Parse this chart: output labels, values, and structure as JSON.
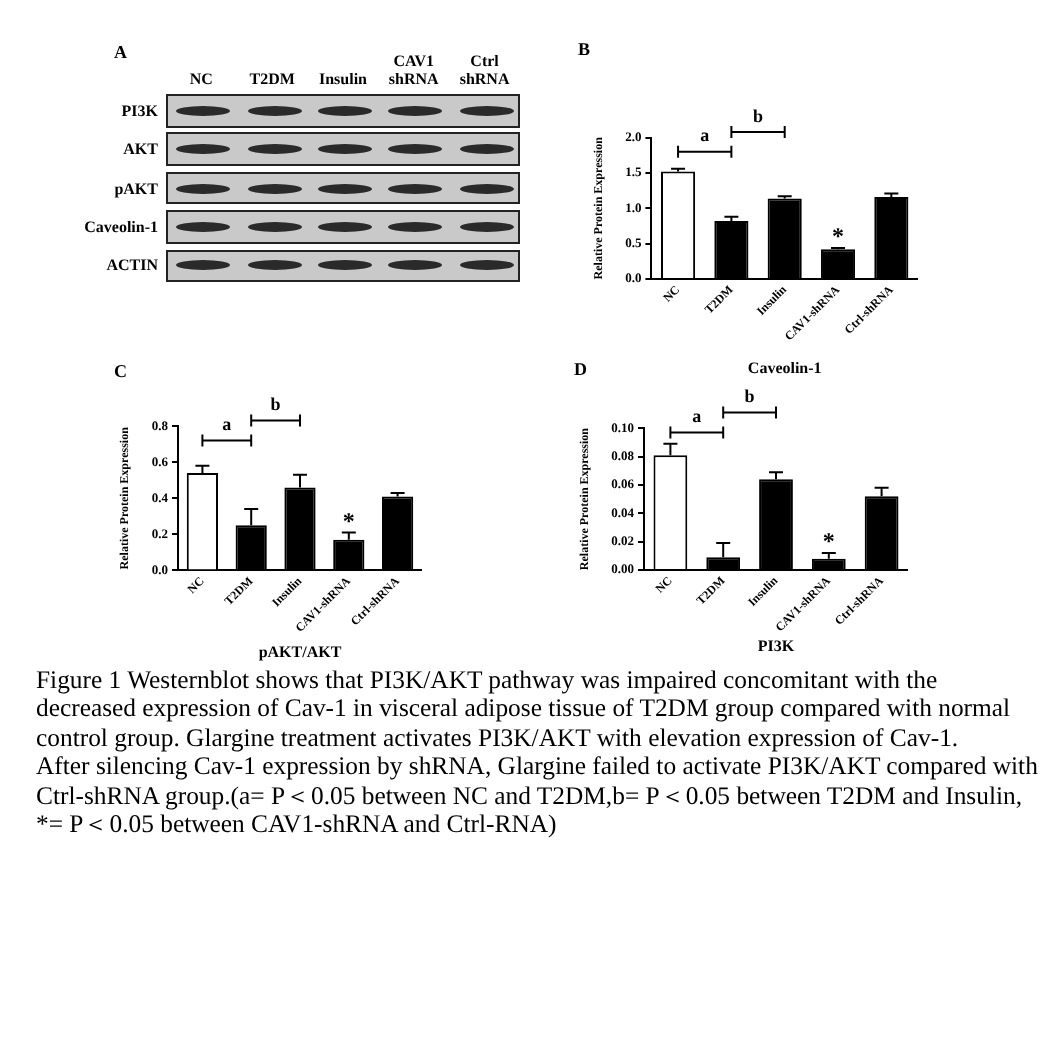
{
  "chart_data": [
    {
      "type": "other",
      "title": "A",
      "categories": [
        "NC",
        "T2DM",
        "Insulin",
        "CAV1 shRNA",
        "Ctrl shRNA"
      ],
      "y_categories": [
        "PI3K",
        "AKT",
        "pAKT",
        "Caveolin-1",
        "ACTIN"
      ]
    },
    {
      "type": "bar",
      "title": "B",
      "xlabel": "Caveolin-1",
      "ylabel": "Relative Protein Expression",
      "categories": [
        "NC",
        "T2DM",
        "Insulin",
        "CAV1-shRNA",
        "Ctrl-shRNA"
      ],
      "values": [
        1.52,
        0.82,
        1.14,
        0.42,
        1.16
      ],
      "colors": [
        "#ffffff",
        "#000000",
        "#000000",
        "#000000",
        "#000000"
      ],
      "errors": [
        [
          1.52,
          1.56
        ],
        [
          0.82,
          0.88
        ],
        [
          1.14,
          1.17
        ],
        [
          0.42,
          0.44
        ],
        [
          1.16,
          1.21
        ]
      ],
      "ylim": [
        0,
        2
      ],
      "yticks": [
        {
          "value": 0,
          "label": "0.0"
        },
        {
          "value": 0.5,
          "label": "0.5"
        },
        {
          "value": 1,
          "label": "1.0"
        },
        {
          "value": 1.5,
          "label": "1.5"
        },
        {
          "value": 2,
          "label": "2.0"
        }
      ],
      "annotations": [
        "a",
        "b",
        "*"
      ]
    },
    {
      "type": "bar",
      "title": "C",
      "xlabel": "pAKT/AKT",
      "ylabel": "Relative Protein Expression",
      "categories": [
        "NC",
        "T2DM",
        "Insulin",
        "CAV1-shRNA",
        "Ctrl-shRNA"
      ],
      "values": [
        0.54,
        0.25,
        0.46,
        0.17,
        0.41
      ],
      "colors": [
        "#ffffff",
        "#000000",
        "#000000",
        "#000000",
        "#000000"
      ],
      "errors": [
        [
          0.54,
          0.58
        ],
        [
          0.25,
          0.34
        ],
        [
          0.46,
          0.53
        ],
        [
          0.17,
          0.21
        ],
        [
          0.41,
          0.43
        ]
      ],
      "ylim": [
        0,
        0.8
      ],
      "yticks": [
        {
          "value": 0,
          "label": "0.0"
        },
        {
          "value": 0.2,
          "label": "0.2"
        },
        {
          "value": 0.4,
          "label": "0.4"
        },
        {
          "value": 0.6,
          "label": "0.6"
        },
        {
          "value": 0.8,
          "label": "0.8"
        }
      ],
      "annotations": [
        "a",
        "b",
        "*"
      ]
    },
    {
      "type": "bar",
      "title": "D",
      "xlabel": "PI3K",
      "ylabel": "Relative Protein Expression",
      "categories": [
        "NC",
        "T2DM",
        "Insulin",
        "CAV1-shRNA",
        "Ctrl-shRNA"
      ],
      "values": [
        0.081,
        0.009,
        0.064,
        0.008,
        0.052
      ],
      "colors": [
        "#ffffff",
        "#000000",
        "#000000",
        "#000000",
        "#000000"
      ],
      "errors": [
        [
          0.081,
          0.089
        ],
        [
          0.009,
          0.019
        ],
        [
          0.064,
          0.069
        ],
        [
          0.008,
          0.012
        ],
        [
          0.052,
          0.058
        ]
      ],
      "ylim": [
        0,
        0.1
      ],
      "yticks": [
        {
          "value": 0,
          "label": "0.00"
        },
        {
          "value": 0.02,
          "label": "0.02"
        },
        {
          "value": 0.04,
          "label": "0.04"
        },
        {
          "value": 0.06,
          "label": "0.06"
        },
        {
          "value": 0.08,
          "label": "0.08"
        },
        {
          "value": 0.1,
          "label": "0.10"
        }
      ],
      "annotations": [
        "a",
        "b",
        "*"
      ]
    },
    {
      "type": "other",
      "annotations": [
        "Figure 1 Westernblot shows that PI3K/AKT pathway was impaired concomitant with the decreased expression of Cav-1 in visceral adipose tissue of T2DM group compared with normal control group. Glargine treatment activates PI3K/AKT with elevation expression of Cav-1.",
        "After silencing Cav-1 expression by shRNA, Glargine failed to activate PI3K/AKT compared with Ctrl-shRNA group.(a= P＜0.05 between NC and T2DM,b= P＜0.05 between T2DM and Insulin, *= P＜0.05 between CAV1-shRNA and Ctrl-RNA)"
      ]
    }
  ]
}
